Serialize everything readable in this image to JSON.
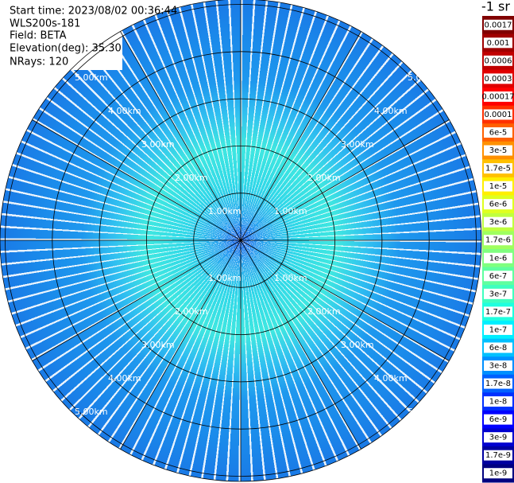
{
  "header": {
    "lines": [
      "Start time: 2023/08/02 00:36:44",
      "WLS200s-181",
      "Field: BETA",
      "Elevation(deg): 35.30",
      "NRays: 120"
    ]
  },
  "colorbar": {
    "title": "-1 sr",
    "labels": [
      "0.0017",
      "0.001",
      "0.0006",
      "0.0003",
      "0.00017",
      "0.0001",
      "6e-5",
      "3e-5",
      "1.7e-5",
      "1e-5",
      "6e-6",
      "3e-6",
      "1.7e-6",
      "1e-6",
      "6e-7",
      "3e-7",
      "1.7e-7",
      "1e-7",
      "6e-8",
      "3e-8",
      "1.7e-8",
      "1e-8",
      "6e-9",
      "3e-9",
      "1.7e-9",
      "1e-9"
    ],
    "colors": [
      "#800000",
      "#a00000",
      "#c00000",
      "#e00000",
      "#ff0000",
      "#ff3000",
      "#ff6000",
      "#ff9000",
      "#ffc000",
      "#ffef00",
      "#dfff1f",
      "#bfff3f",
      "#9fff5f",
      "#7fff7f",
      "#5fff9f",
      "#3fffbf",
      "#1fffdf",
      "#00efff",
      "#00c0ff",
      "#0090ff",
      "#0060ff",
      "#0030ff",
      "#0000ff",
      "#0000d0",
      "#0000a0",
      "#000080"
    ]
  },
  "rings": [
    "1.00km",
    "2.00km",
    "3.00km",
    "4.00km",
    "5.00km"
  ]
}
